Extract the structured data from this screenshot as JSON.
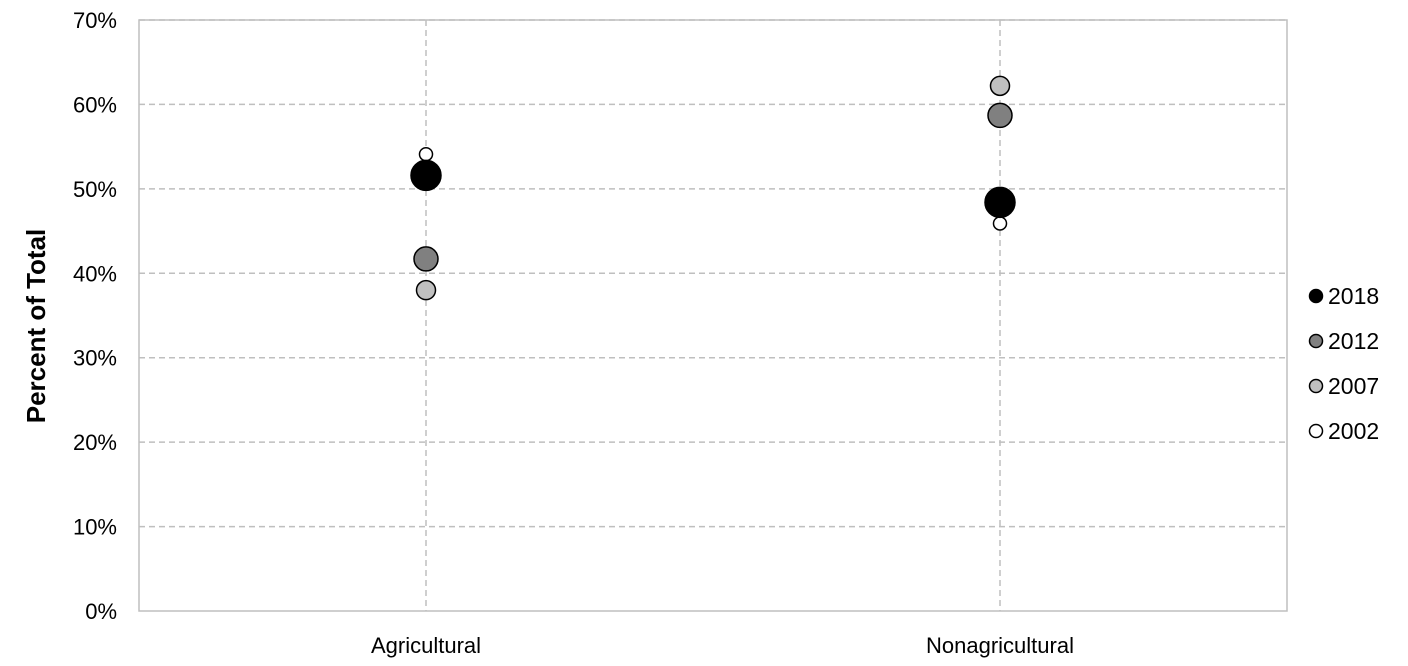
{
  "chart_data": {
    "type": "scatter",
    "title": "",
    "xlabel": "",
    "ylabel": "Percent of Total",
    "categories": [
      "Agricultural",
      "Nonagricultural"
    ],
    "ylim": [
      0,
      70
    ],
    "yticks": [
      0,
      10,
      20,
      30,
      40,
      50,
      60,
      70
    ],
    "ytick_labels": [
      "0%",
      "10%",
      "20%",
      "30%",
      "40%",
      "50%",
      "60%",
      "70%"
    ],
    "grid": true,
    "grid_style": "dashed",
    "legend_position": "right",
    "series": [
      {
        "name": "2018",
        "values": [
          51.6,
          48.4
        ],
        "color": "#000000"
      },
      {
        "name": "2012",
        "values": [
          41.7,
          58.7
        ],
        "color": "#808080"
      },
      {
        "name": "2007",
        "values": [
          38.0,
          62.2
        ],
        "color": "#c0c0c0"
      },
      {
        "name": "2002",
        "values": [
          54.1,
          45.9
        ],
        "color": "#ffffff"
      }
    ]
  }
}
